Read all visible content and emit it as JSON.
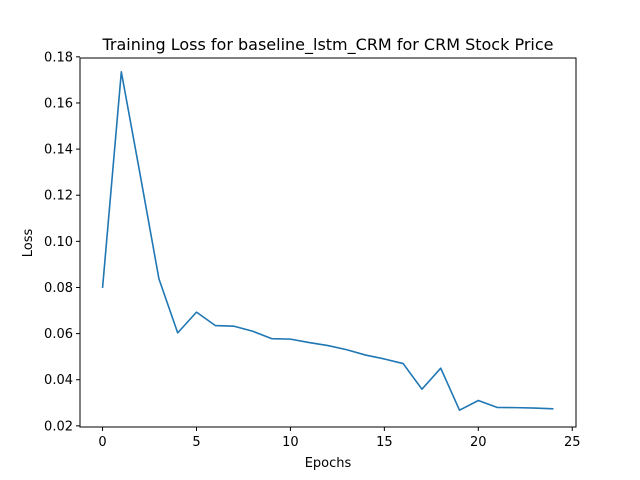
{
  "chart_data": {
    "type": "line",
    "title": "Training Loss for baseline_lstm_CRM for CRM Stock Price",
    "xlabel": "Epochs",
    "ylabel": "Loss",
    "xlim": [
      -1.2,
      25.2
    ],
    "ylim": [
      0.0195,
      0.1795
    ],
    "xticks": [
      0,
      5,
      10,
      15,
      20,
      25
    ],
    "yticks": [
      0.02,
      0.04,
      0.06,
      0.08,
      0.1,
      0.12,
      0.14,
      0.16,
      0.18
    ],
    "xtick_labels": [
      "0",
      "5",
      "10",
      "15",
      "20",
      "25"
    ],
    "ytick_labels": [
      "0.02",
      "0.04",
      "0.06",
      "0.08",
      "0.10",
      "0.12",
      "0.14",
      "0.16",
      "0.18"
    ],
    "grid": false,
    "series": [
      {
        "name": "Training Loss",
        "color": "#1f77b4",
        "x": [
          0,
          1,
          2,
          3,
          4,
          5,
          6,
          7,
          8,
          9,
          10,
          11,
          12,
          13,
          14,
          15,
          16,
          17,
          18,
          19,
          20,
          21,
          22,
          23,
          24
        ],
        "values": [
          0.0798,
          0.1735,
          0.129,
          0.0838,
          0.0603,
          0.0693,
          0.0635,
          0.0632,
          0.061,
          0.0578,
          0.0576,
          0.0561,
          0.0548,
          0.053,
          0.0507,
          0.049,
          0.047,
          0.0359,
          0.045,
          0.0268,
          0.031,
          0.028,
          0.0279,
          0.0277,
          0.0274
        ]
      }
    ]
  }
}
